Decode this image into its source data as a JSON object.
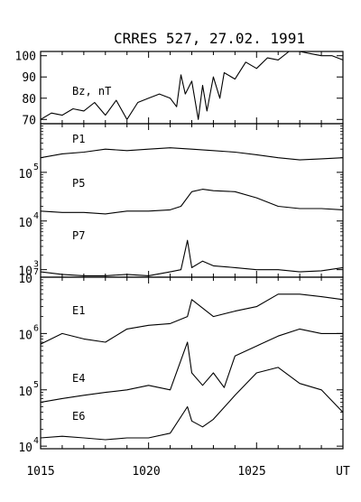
{
  "chart_data": {
    "type": "line",
    "title": "CRRES 527,  27.02. 1991",
    "x_tick_labels": [
      "1015",
      "1020",
      "1025",
      "UT"
    ],
    "x_range": [
      1015,
      1029
    ],
    "panels": [
      {
        "id": "bz",
        "scale": "linear",
        "y_range": [
          68,
          102
        ],
        "y_tick_labels": [
          "70",
          "80",
          "90",
          "100"
        ],
        "y_tick_values": [
          70,
          80,
          90,
          100
        ],
        "series": [
          {
            "name": "Bz, nT",
            "x": [
              1015.0,
              1015.5,
              1016.0,
              1016.5,
              1017.0,
              1017.5,
              1018.0,
              1018.5,
              1019.0,
              1019.5,
              1020.0,
              1020.5,
              1021.0,
              1021.3,
              1021.5,
              1021.7,
              1022.0,
              1022.3,
              1022.5,
              1022.7,
              1023.0,
              1023.3,
              1023.5,
              1024.0,
              1024.5,
              1025.0,
              1025.5,
              1026.0,
              1026.5,
              1027.0,
              1027.5,
              1028.0,
              1028.5,
              1029.0
            ],
            "y": [
              70,
              73,
              72,
              75,
              74,
              78,
              72,
              79,
              70,
              78,
              80,
              82,
              80,
              76,
              91,
              82,
              88,
              70,
              86,
              74,
              90,
              80,
              92,
              89,
              97,
              94,
              99,
              98,
              103,
              102,
              101,
              100,
              100,
              98
            ]
          }
        ]
      },
      {
        "id": "protons",
        "scale": "log",
        "y_range": [
          700,
          1000000
        ],
        "y_tick_labels": [
          "10",
          "3",
          "10",
          "4",
          "10",
          "5"
        ],
        "y_tick_values": [
          1000,
          10000,
          100000
        ],
        "series": [
          {
            "name": "P1",
            "x": [
              1015,
              1016,
              1017,
              1018,
              1019,
              1020,
              1021,
              1022,
              1023,
              1024,
              1025,
              1026,
              1027,
              1028,
              1029
            ],
            "y": [
              200000,
              240000,
              260000,
              300000,
              280000,
              300000,
              320000,
              300000,
              280000,
              260000,
              230000,
              200000,
              180000,
              190000,
              200000
            ]
          },
          {
            "name": "P5",
            "x": [
              1015,
              1016,
              1017,
              1018,
              1019,
              1020,
              1021,
              1021.5,
              1022,
              1022.5,
              1023,
              1024,
              1025,
              1026,
              1027,
              1028,
              1029
            ],
            "y": [
              16000,
              15000,
              15000,
              14000,
              16000,
              16000,
              17000,
              20000,
              40000,
              45000,
              42000,
              40000,
              30000,
              20000,
              18000,
              18000,
              17000
            ]
          },
          {
            "name": "P7",
            "x": [
              1015,
              1016,
              1017,
              1018,
              1019,
              1020,
              1021,
              1021.5,
              1021.8,
              1022,
              1022.5,
              1023,
              1024,
              1025,
              1026,
              1027,
              1028,
              1029
            ],
            "y": [
              900,
              800,
              750,
              750,
              800,
              750,
              900,
              1000,
              4000,
              1100,
              1500,
              1200,
              1100,
              1000,
              1000,
              900,
              950,
              1100
            ]
          }
        ]
      },
      {
        "id": "electrons",
        "scale": "log",
        "y_range": [
          9000,
          10000000
        ],
        "y_tick_labels": [
          "10",
          "4",
          "10",
          "5",
          "10",
          "6",
          "10",
          "7"
        ],
        "y_tick_values": [
          10000,
          100000,
          1000000,
          10000000
        ],
        "series": [
          {
            "name": "E1",
            "x": [
              1015,
              1016,
              1017,
              1018,
              1019,
              1020,
              1021,
              1021.8,
              1022,
              1023,
              1024,
              1025,
              1026,
              1027,
              1028,
              1029
            ],
            "y": [
              650000,
              1000000,
              800000,
              700000,
              1200000,
              1400000,
              1500000,
              2000000,
              4000000,
              2000000,
              2500000,
              3000000,
              5000000,
              5000000,
              4500000,
              4000000
            ]
          },
          {
            "name": "E4",
            "x": [
              1015,
              1016,
              1017,
              1018,
              1019,
              1020,
              1021,
              1021.8,
              1022,
              1022.5,
              1023,
              1023.5,
              1024,
              1025,
              1026,
              1027,
              1028,
              1029
            ],
            "y": [
              60000,
              70000,
              80000,
              90000,
              100000,
              120000,
              100000,
              700000,
              200000,
              120000,
              200000,
              110000,
              400000,
              600000,
              900000,
              1200000,
              1000000,
              1000000
            ]
          },
          {
            "name": "E6",
            "x": [
              1015,
              1016,
              1017,
              1018,
              1019,
              1020,
              1021,
              1021.8,
              1022,
              1022.5,
              1023,
              1024,
              1025,
              1026,
              1027,
              1028,
              1029
            ],
            "y": [
              14000,
              15000,
              14000,
              13000,
              14000,
              14000,
              17000,
              50000,
              28000,
              22000,
              30000,
              80000,
              200000,
              250000,
              130000,
              100000,
              40000
            ]
          }
        ]
      }
    ]
  }
}
